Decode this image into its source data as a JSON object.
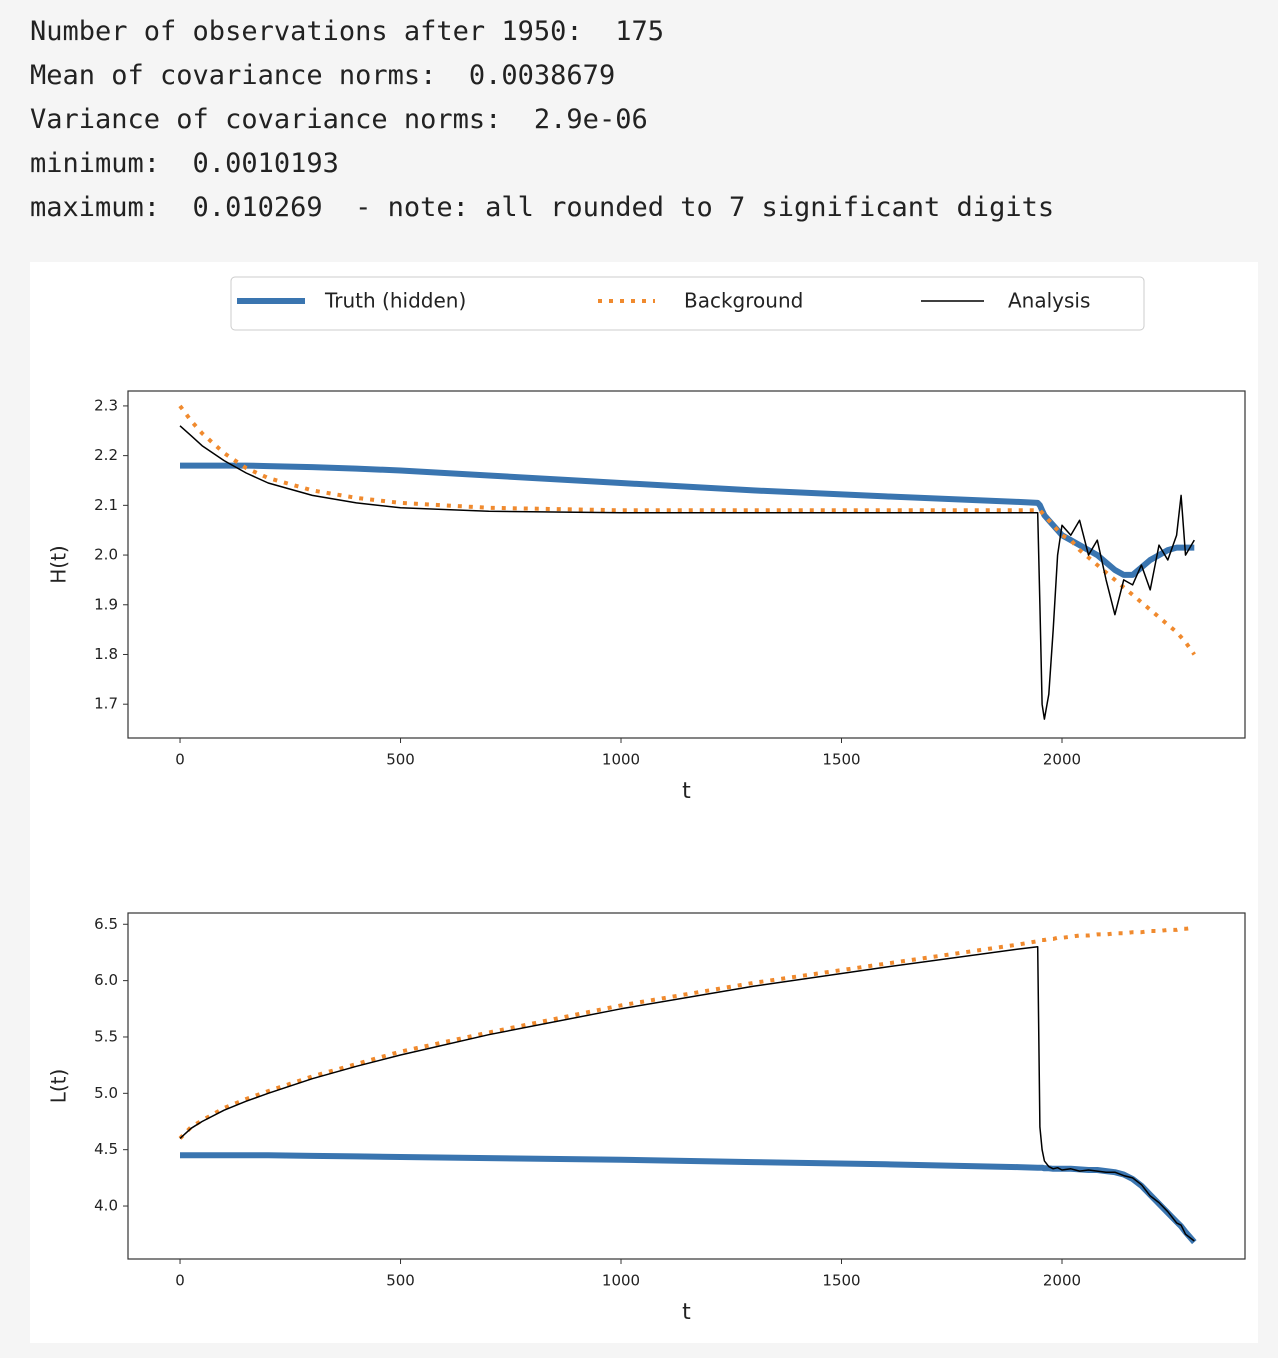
{
  "output_lines": [
    "Number of observations after 1950:  175",
    "Mean of covariance norms:  0.0038679",
    "Variance of covariance norms:  2.9e-06",
    "minimum:  0.0010193",
    "maximum:  0.010269  - note: all rounded to 7 significant digits"
  ],
  "chart_data": [
    {
      "type": "line",
      "xlabel": "t",
      "ylabel": "H(t)",
      "x": [
        0,
        25,
        50,
        100,
        150,
        200,
        300,
        400,
        500,
        700,
        1000,
        1300,
        1600,
        1900,
        1945,
        1950,
        1955,
        1960,
        1970,
        1980,
        1990,
        2000,
        2020,
        2040,
        2060,
        2080,
        2100,
        2120,
        2140,
        2160,
        2180,
        2200,
        2220,
        2240,
        2260,
        2270,
        2280,
        2300
      ],
      "xlim": [
        -118,
        2415
      ],
      "xticks": [
        0,
        500,
        1000,
        1500,
        2000
      ],
      "ylim": [
        1.632,
        2.33
      ],
      "yticks": [
        1.7,
        1.8,
        1.9,
        {
          "value": 2,
          "label": "2.0"
        },
        2.1,
        2.2,
        2.3
      ],
      "series": [
        {
          "name": "Truth (hidden)",
          "color": "#3a75b0",
          "linestyle": "solid",
          "linewidth": 6,
          "values": [
            2.18,
            2.18,
            2.18,
            2.18,
            2.18,
            2.179,
            2.177,
            2.174,
            2.17,
            2.16,
            2.145,
            2.13,
            2.118,
            2.107,
            2.105,
            2.1,
            2.09,
            2.08,
            2.07,
            2.06,
            2.05,
            2.04,
            2.03,
            2.02,
            2.01,
            2.0,
            1.985,
            1.97,
            1.96,
            1.96,
            1.975,
            1.99,
            2.0,
            2.01,
            2.015,
            2.015,
            2.015,
            2.015
          ]
        },
        {
          "name": "Background",
          "color": "#f08a2e",
          "linestyle": "dotted",
          "linewidth": 4,
          "values": [
            2.3,
            2.27,
            2.245,
            2.205,
            2.175,
            2.155,
            2.13,
            2.115,
            2.105,
            2.095,
            2.09,
            2.09,
            2.09,
            2.09,
            2.09,
            2.09,
            2.085,
            2.08,
            2.07,
            2.06,
            2.05,
            2.04,
            2.03,
            2.01,
            1.995,
            1.98,
            1.965,
            1.95,
            1.935,
            1.92,
            1.905,
            1.89,
            1.875,
            1.86,
            1.845,
            1.835,
            1.825,
            1.8
          ]
        },
        {
          "name": "Analysis",
          "color": "#000000",
          "linestyle": "solid",
          "linewidth": 1.5,
          "values": [
            2.26,
            2.24,
            2.22,
            2.19,
            2.165,
            2.145,
            2.12,
            2.105,
            2.095,
            2.088,
            2.085,
            2.085,
            2.085,
            2.085,
            2.085,
            1.9,
            1.7,
            1.67,
            1.72,
            1.85,
            2.0,
            2.06,
            2.04,
            2.07,
            2.0,
            2.03,
            1.95,
            1.88,
            1.95,
            1.94,
            1.98,
            1.93,
            2.02,
            1.99,
            2.04,
            2.12,
            2.0,
            2.03
          ]
        }
      ]
    },
    {
      "type": "line",
      "xlabel": "t",
      "ylabel": "L(t)",
      "x": [
        0,
        25,
        50,
        100,
        150,
        200,
        300,
        400,
        500,
        700,
        1000,
        1300,
        1600,
        1900,
        1945,
        1950,
        1955,
        1960,
        1970,
        1980,
        1990,
        2000,
        2020,
        2040,
        2060,
        2080,
        2100,
        2120,
        2140,
        2160,
        2180,
        2200,
        2220,
        2240,
        2260,
        2270,
        2280,
        2300
      ],
      "xlim": [
        -118,
        2415
      ],
      "xticks": [
        0,
        500,
        1000,
        1500,
        2000
      ],
      "ylim": [
        3.53,
        6.6
      ],
      "yticks": [
        {
          "value": 4,
          "label": "4.0"
        },
        4.5,
        {
          "value": 5,
          "label": "5.0"
        },
        5.5,
        {
          "value": 6,
          "label": "6.0"
        },
        6.5
      ],
      "series": [
        {
          "name": "Truth (hidden)",
          "color": "#3a75b0",
          "linestyle": "solid",
          "linewidth": 6,
          "values": [
            4.45,
            4.45,
            4.45,
            4.45,
            4.45,
            4.45,
            4.445,
            4.44,
            4.435,
            4.425,
            4.41,
            4.39,
            4.37,
            4.345,
            4.34,
            4.34,
            4.34,
            4.335,
            4.335,
            4.33,
            4.33,
            4.33,
            4.33,
            4.325,
            4.32,
            4.32,
            4.31,
            4.3,
            4.28,
            4.24,
            4.18,
            4.1,
            4.02,
            3.94,
            3.86,
            3.82,
            3.77,
            3.68
          ]
        },
        {
          "name": "Background",
          "color": "#f08a2e",
          "linestyle": "dotted",
          "linewidth": 4,
          "values": [
            4.6,
            4.7,
            4.76,
            4.87,
            4.95,
            5.02,
            5.15,
            5.26,
            5.37,
            5.54,
            5.78,
            5.98,
            6.15,
            6.32,
            6.35,
            6.35,
            6.36,
            6.36,
            6.37,
            6.37,
            6.38,
            6.38,
            6.39,
            6.4,
            6.4,
            6.41,
            6.41,
            6.42,
            6.42,
            6.43,
            6.43,
            6.44,
            6.44,
            6.45,
            6.45,
            6.46,
            6.46,
            6.47
          ]
        },
        {
          "name": "Analysis",
          "color": "#000000",
          "linestyle": "solid",
          "linewidth": 1.5,
          "values": [
            4.6,
            4.69,
            4.75,
            4.85,
            4.93,
            5.0,
            5.13,
            5.24,
            5.34,
            5.52,
            5.75,
            5.95,
            6.12,
            6.28,
            6.3,
            4.7,
            4.5,
            4.4,
            4.35,
            4.33,
            4.34,
            4.32,
            4.33,
            4.31,
            4.32,
            4.31,
            4.3,
            4.3,
            4.27,
            4.25,
            4.19,
            4.09,
            4.03,
            3.95,
            3.85,
            3.83,
            3.75,
            3.69
          ]
        }
      ]
    }
  ]
}
